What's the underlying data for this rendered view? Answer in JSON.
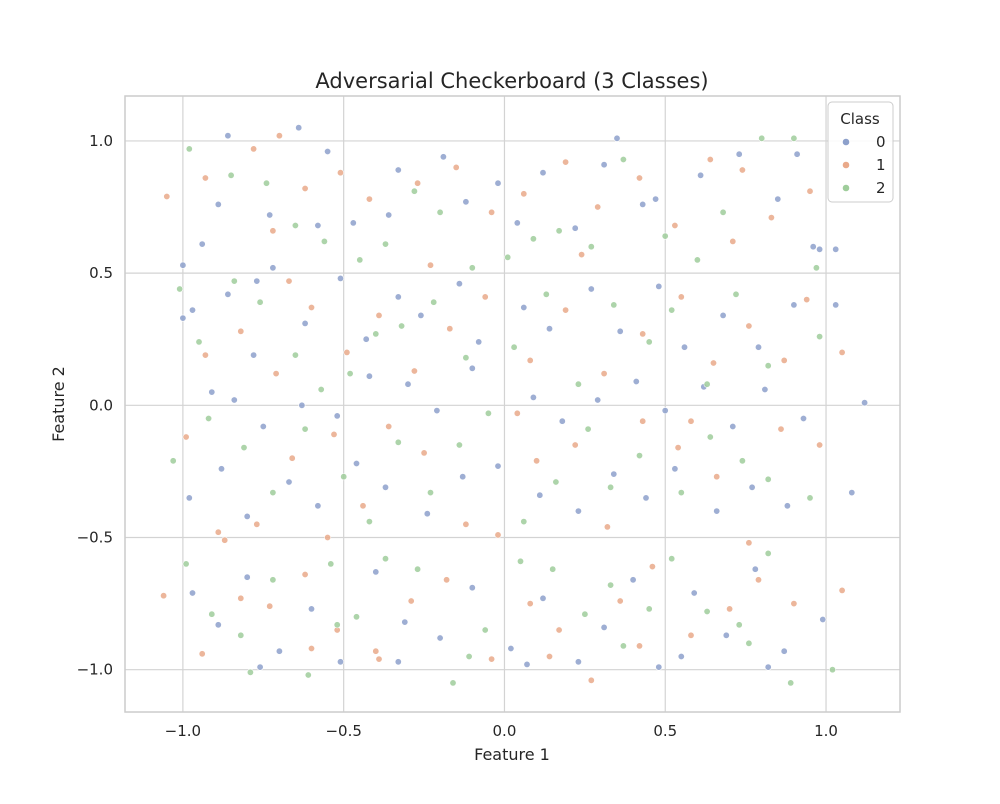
{
  "chart_data": {
    "type": "scatter",
    "title": "Adversarial Checkerboard (3 Classes)",
    "xlabel": "Feature 1",
    "ylabel": "Feature 2",
    "xlim": [
      -1.18,
      1.23
    ],
    "ylim": [
      -1.16,
      1.17
    ],
    "xticks": [
      -1.0,
      -0.5,
      0.0,
      0.5,
      1.0
    ],
    "yticks": [
      -1.0,
      -0.5,
      0.0,
      0.5,
      1.0
    ],
    "xtick_labels": [
      "−1.0",
      "−0.5",
      "0.0",
      "0.5",
      "1.0"
    ],
    "ytick_labels": [
      "−1.0",
      "−0.5",
      "0.0",
      "0.5",
      "1.0"
    ],
    "grid": true,
    "legend": {
      "title": "Class",
      "placement": "top-right",
      "entries": [
        "0",
        "1",
        "2"
      ]
    },
    "series": [
      {
        "name": "0",
        "color": "#8da0cb",
        "points": [
          [
            -1.0,
            0.53
          ],
          [
            -1.0,
            0.33
          ],
          [
            -0.94,
            0.61
          ],
          [
            -0.89,
            0.76
          ],
          [
            -0.86,
            1.02
          ],
          [
            -0.77,
            0.47
          ],
          [
            -0.73,
            0.72
          ],
          [
            -0.64,
            1.05
          ],
          [
            -0.58,
            0.68
          ],
          [
            -0.55,
            0.96
          ],
          [
            -0.47,
            0.69
          ],
          [
            -0.36,
            0.72
          ],
          [
            -0.33,
            0.89
          ],
          [
            -0.19,
            0.94
          ],
          [
            -0.12,
            0.77
          ],
          [
            -0.02,
            0.84
          ],
          [
            0.04,
            0.69
          ],
          [
            0.12,
            0.88
          ],
          [
            0.22,
            0.67
          ],
          [
            0.31,
            0.91
          ],
          [
            0.35,
            1.01
          ],
          [
            0.43,
            0.76
          ],
          [
            0.47,
            0.78
          ],
          [
            0.61,
            0.87
          ],
          [
            0.73,
            0.95
          ],
          [
            0.85,
            0.78
          ],
          [
            0.91,
            0.95
          ],
          [
            0.96,
            0.6
          ],
          [
            0.98,
            0.59
          ],
          [
            1.03,
            0.59
          ],
          [
            -0.97,
            0.36
          ],
          [
            -0.86,
            0.42
          ],
          [
            -0.78,
            0.19
          ],
          [
            -0.72,
            0.52
          ],
          [
            -0.62,
            0.31
          ],
          [
            -0.51,
            0.48
          ],
          [
            -0.43,
            0.25
          ],
          [
            -0.33,
            0.41
          ],
          [
            -0.26,
            0.34
          ],
          [
            -0.14,
            0.46
          ],
          [
            -0.08,
            0.24
          ],
          [
            0.06,
            0.37
          ],
          [
            0.14,
            0.29
          ],
          [
            0.27,
            0.44
          ],
          [
            0.36,
            0.28
          ],
          [
            0.48,
            0.45
          ],
          [
            0.56,
            0.22
          ],
          [
            0.68,
            0.34
          ],
          [
            0.79,
            0.22
          ],
          [
            0.9,
            0.38
          ],
          [
            1.03,
            0.38
          ],
          [
            -0.91,
            0.05
          ],
          [
            -0.84,
            0.02
          ],
          [
            -0.75,
            -0.08
          ],
          [
            -0.63,
            0.0
          ],
          [
            -0.52,
            -0.04
          ],
          [
            -0.42,
            0.11
          ],
          [
            -0.3,
            0.08
          ],
          [
            -0.21,
            -0.02
          ],
          [
            -0.1,
            0.14
          ],
          [
            0.09,
            0.03
          ],
          [
            0.18,
            -0.06
          ],
          [
            0.29,
            0.02
          ],
          [
            0.41,
            0.09
          ],
          [
            0.5,
            -0.02
          ],
          [
            0.62,
            0.07
          ],
          [
            0.71,
            -0.08
          ],
          [
            0.81,
            0.06
          ],
          [
            0.93,
            -0.05
          ],
          [
            1.12,
            0.01
          ],
          [
            -0.98,
            -0.35
          ],
          [
            -0.88,
            -0.24
          ],
          [
            -0.8,
            -0.42
          ],
          [
            -0.67,
            -0.29
          ],
          [
            -0.58,
            -0.38
          ],
          [
            -0.46,
            -0.22
          ],
          [
            -0.37,
            -0.31
          ],
          [
            -0.24,
            -0.41
          ],
          [
            -0.13,
            -0.27
          ],
          [
            -0.02,
            -0.23
          ],
          [
            0.11,
            -0.34
          ],
          [
            0.23,
            -0.4
          ],
          [
            0.34,
            -0.26
          ],
          [
            0.44,
            -0.35
          ],
          [
            0.53,
            -0.24
          ],
          [
            0.66,
            -0.4
          ],
          [
            0.77,
            -0.31
          ],
          [
            0.88,
            -0.38
          ],
          [
            1.08,
            -0.33
          ],
          [
            -0.97,
            -0.71
          ],
          [
            -0.89,
            -0.83
          ],
          [
            -0.8,
            -0.65
          ],
          [
            -0.7,
            -0.93
          ],
          [
            -0.6,
            -0.77
          ],
          [
            -0.51,
            -0.97
          ],
          [
            -0.4,
            -0.63
          ],
          [
            -0.31,
            -0.82
          ],
          [
            -0.2,
            -0.88
          ],
          [
            -0.1,
            -0.69
          ],
          [
            0.02,
            -0.92
          ],
          [
            0.12,
            -0.73
          ],
          [
            0.23,
            -0.97
          ],
          [
            0.31,
            -0.84
          ],
          [
            0.4,
            -0.66
          ],
          [
            0.48,
            -0.99
          ],
          [
            0.59,
            -0.71
          ],
          [
            0.69,
            -0.87
          ],
          [
            0.78,
            -0.62
          ],
          [
            0.87,
            -0.93
          ],
          [
            0.99,
            -0.81
          ],
          [
            -0.76,
            -0.99
          ],
          [
            -0.33,
            -0.97
          ],
          [
            0.07,
            -0.98
          ],
          [
            0.55,
            -0.95
          ],
          [
            0.82,
            -0.99
          ]
        ]
      },
      {
        "name": "1",
        "color": "#e9a98a",
        "points": [
          [
            -1.05,
            0.79
          ],
          [
            -0.93,
            0.86
          ],
          [
            -0.78,
            0.97
          ],
          [
            -0.7,
            1.02
          ],
          [
            -0.62,
            0.82
          ],
          [
            -0.51,
            0.88
          ],
          [
            -0.42,
            0.78
          ],
          [
            -0.27,
            0.84
          ],
          [
            -0.15,
            0.9
          ],
          [
            -0.04,
            0.73
          ],
          [
            0.06,
            0.8
          ],
          [
            0.19,
            0.92
          ],
          [
            0.29,
            0.75
          ],
          [
            0.42,
            0.86
          ],
          [
            0.53,
            0.68
          ],
          [
            0.64,
            0.93
          ],
          [
            0.74,
            0.89
          ],
          [
            0.83,
            0.71
          ],
          [
            0.95,
            0.81
          ],
          [
            -0.93,
            0.19
          ],
          [
            -0.82,
            0.28
          ],
          [
            -0.71,
            0.12
          ],
          [
            -0.6,
            0.37
          ],
          [
            -0.49,
            0.2
          ],
          [
            -0.39,
            0.34
          ],
          [
            -0.28,
            0.13
          ],
          [
            -0.17,
            0.29
          ],
          [
            -0.06,
            0.41
          ],
          [
            0.08,
            0.17
          ],
          [
            0.19,
            0.36
          ],
          [
            0.31,
            0.12
          ],
          [
            0.43,
            0.27
          ],
          [
            0.55,
            0.41
          ],
          [
            0.65,
            0.16
          ],
          [
            0.76,
            0.3
          ],
          [
            0.87,
            0.17
          ],
          [
            1.05,
            0.2
          ],
          [
            -0.99,
            -0.12
          ],
          [
            -0.89,
            -0.48
          ],
          [
            -0.77,
            -0.45
          ],
          [
            -0.66,
            -0.2
          ],
          [
            -0.55,
            -0.5
          ],
          [
            -0.44,
            -0.38
          ],
          [
            -0.36,
            -0.08
          ],
          [
            -0.25,
            -0.18
          ],
          [
            -0.12,
            -0.45
          ],
          [
            -0.02,
            -0.49
          ],
          [
            0.1,
            -0.21
          ],
          [
            0.22,
            -0.15
          ],
          [
            0.32,
            -0.46
          ],
          [
            0.43,
            -0.06
          ],
          [
            0.54,
            -0.16
          ],
          [
            0.66,
            -0.27
          ],
          [
            0.76,
            -0.52
          ],
          [
            0.86,
            -0.09
          ],
          [
            0.98,
            -0.15
          ],
          [
            -1.06,
            -0.72
          ],
          [
            -0.94,
            -0.94
          ],
          [
            -0.82,
            -0.73
          ],
          [
            -0.73,
            -0.76
          ],
          [
            -0.62,
            -0.64
          ],
          [
            -0.52,
            -0.85
          ],
          [
            -0.4,
            -0.93
          ],
          [
            -0.29,
            -0.74
          ],
          [
            -0.18,
            -0.66
          ],
          [
            -0.04,
            -0.96
          ],
          [
            0.08,
            -0.75
          ],
          [
            0.17,
            -0.85
          ],
          [
            0.27,
            -1.04
          ],
          [
            0.36,
            -0.74
          ],
          [
            0.46,
            -0.61
          ],
          [
            0.58,
            -0.87
          ],
          [
            0.7,
            -0.77
          ],
          [
            0.79,
            -0.66
          ],
          [
            0.9,
            -0.75
          ],
          [
            1.05,
            -0.7
          ],
          [
            -0.87,
            -0.51
          ],
          [
            -0.6,
            -0.92
          ],
          [
            -0.39,
            -0.96
          ],
          [
            0.14,
            -0.95
          ],
          [
            0.42,
            -0.91
          ],
          [
            -0.72,
            0.66
          ],
          [
            -0.23,
            0.53
          ],
          [
            0.24,
            0.57
          ],
          [
            0.71,
            0.62
          ],
          [
            0.94,
            0.4
          ],
          [
            -0.53,
            -0.11
          ],
          [
            0.04,
            -0.03
          ],
          [
            0.58,
            -0.06
          ],
          [
            -0.67,
            0.47
          ]
        ]
      },
      {
        "name": "2",
        "color": "#9fcd9b",
        "points": [
          [
            -0.98,
            0.97
          ],
          [
            -0.85,
            0.87
          ],
          [
            -0.74,
            0.84
          ],
          [
            -0.65,
            0.68
          ],
          [
            -0.56,
            0.62
          ],
          [
            -0.45,
            0.55
          ],
          [
            -0.37,
            0.61
          ],
          [
            -0.28,
            0.81
          ],
          [
            -0.2,
            0.73
          ],
          [
            -0.1,
            0.52
          ],
          [
            0.01,
            0.56
          ],
          [
            0.09,
            0.63
          ],
          [
            0.17,
            0.66
          ],
          [
            0.27,
            0.6
          ],
          [
            0.37,
            0.93
          ],
          [
            0.5,
            0.64
          ],
          [
            0.6,
            0.55
          ],
          [
            0.68,
            0.73
          ],
          [
            0.8,
            1.01
          ],
          [
            0.9,
            1.01
          ],
          [
            0.97,
            0.52
          ],
          [
            -1.01,
            0.44
          ],
          [
            -0.95,
            0.24
          ],
          [
            -0.84,
            0.47
          ],
          [
            -0.76,
            0.39
          ],
          [
            -0.65,
            0.19
          ],
          [
            -0.57,
            0.06
          ],
          [
            -0.48,
            0.12
          ],
          [
            -0.4,
            0.27
          ],
          [
            -0.32,
            0.3
          ],
          [
            -0.22,
            0.39
          ],
          [
            -0.12,
            0.18
          ],
          [
            0.03,
            0.22
          ],
          [
            0.13,
            0.42
          ],
          [
            0.23,
            0.08
          ],
          [
            0.34,
            0.38
          ],
          [
            0.45,
            0.24
          ],
          [
            0.52,
            0.36
          ],
          [
            0.63,
            0.08
          ],
          [
            0.72,
            0.42
          ],
          [
            0.82,
            0.15
          ],
          [
            0.98,
            0.26
          ],
          [
            -1.03,
            -0.21
          ],
          [
            -0.92,
            -0.05
          ],
          [
            -0.81,
            -0.16
          ],
          [
            -0.72,
            -0.33
          ],
          [
            -0.62,
            -0.09
          ],
          [
            -0.5,
            -0.27
          ],
          [
            -0.42,
            -0.44
          ],
          [
            -0.33,
            -0.14
          ],
          [
            -0.23,
            -0.33
          ],
          [
            -0.14,
            -0.15
          ],
          [
            -0.05,
            -0.03
          ],
          [
            0.06,
            -0.44
          ],
          [
            0.16,
            -0.29
          ],
          [
            0.26,
            -0.09
          ],
          [
            0.33,
            -0.31
          ],
          [
            0.42,
            -0.19
          ],
          [
            0.55,
            -0.33
          ],
          [
            0.64,
            -0.12
          ],
          [
            0.74,
            -0.21
          ],
          [
            0.82,
            -0.28
          ],
          [
            0.95,
            -0.35
          ],
          [
            -0.99,
            -0.6
          ],
          [
            -0.91,
            -0.79
          ],
          [
            -0.82,
            -0.87
          ],
          [
            -0.72,
            -0.66
          ],
          [
            -0.61,
            -1.02
          ],
          [
            -0.54,
            -0.6
          ],
          [
            -0.46,
            -0.8
          ],
          [
            -0.37,
            -0.58
          ],
          [
            -0.27,
            -0.62
          ],
          [
            -0.16,
            -1.05
          ],
          [
            -0.06,
            -0.85
          ],
          [
            0.05,
            -0.59
          ],
          [
            0.15,
            -0.62
          ],
          [
            0.25,
            -0.79
          ],
          [
            0.33,
            -0.68
          ],
          [
            0.45,
            -0.77
          ],
          [
            0.52,
            -0.58
          ],
          [
            0.63,
            -0.78
          ],
          [
            0.73,
            -0.83
          ],
          [
            0.82,
            -0.56
          ],
          [
            0.89,
            -1.05
          ],
          [
            1.02,
            -1.0
          ],
          [
            -0.79,
            -1.01
          ],
          [
            -0.52,
            -0.83
          ],
          [
            -0.11,
            -0.95
          ],
          [
            0.37,
            -0.91
          ],
          [
            0.76,
            -0.9
          ]
        ]
      }
    ]
  }
}
